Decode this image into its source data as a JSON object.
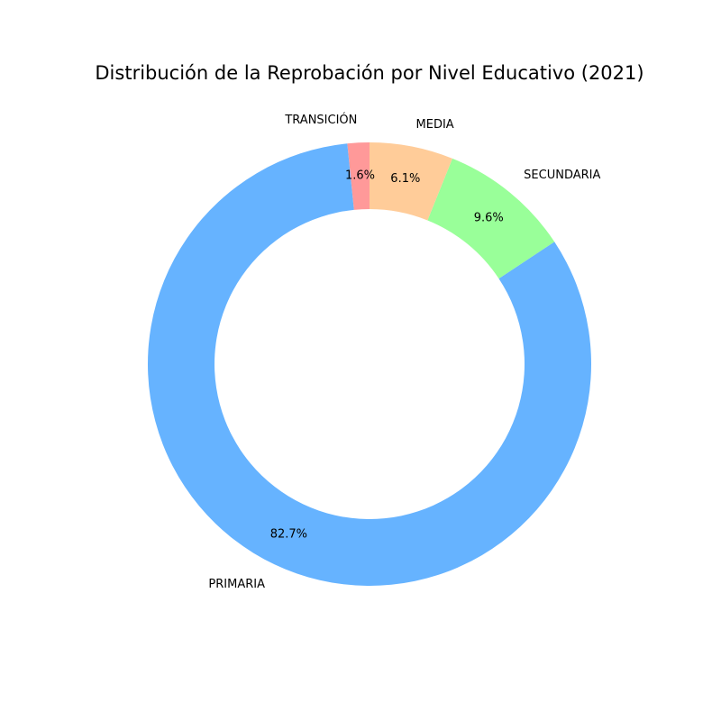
{
  "chart_data": {
    "type": "pie",
    "subtype": "donut",
    "title": "Distribución de la Reprobación por Nivel Educativo (2021)",
    "start_angle_deg": 90,
    "direction": "counterclockwise",
    "slices": [
      {
        "label": "TRANSICIÓN",
        "value": 1.6,
        "pct_label": "1.6%",
        "color": "#ff9999"
      },
      {
        "label": "PRIMARIA",
        "value": 82.7,
        "pct_label": "82.7%",
        "color": "#66b3ff"
      },
      {
        "label": "SECUNDARIA",
        "value": 9.6,
        "pct_label": "9.6%",
        "color": "#99ff99"
      },
      {
        "label": "MEDIA",
        "value": 6.1,
        "pct_label": "6.1%",
        "color": "#ffcc99"
      }
    ]
  }
}
